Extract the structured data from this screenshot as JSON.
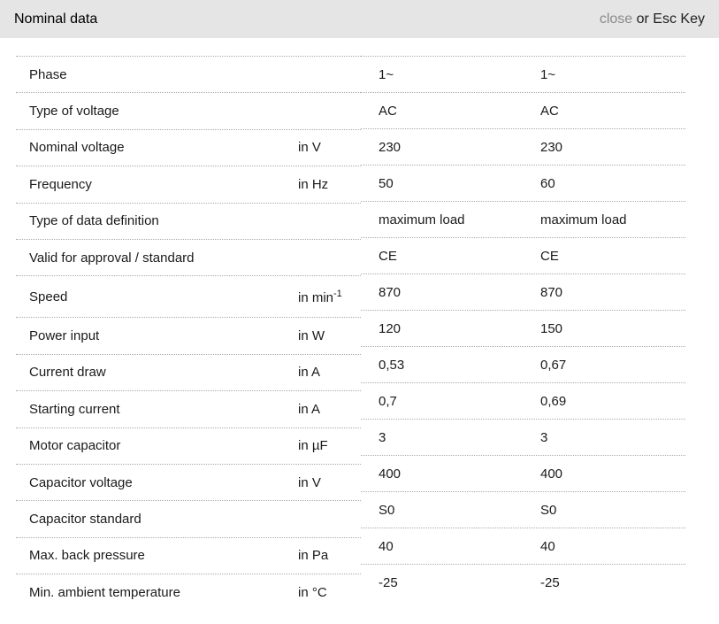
{
  "header": {
    "title": "Nominal data",
    "close_label": "close",
    "close_hint": " or Esc Key"
  },
  "table": {
    "rows": [
      {
        "label": "Phase",
        "unit": "",
        "v1": "1~",
        "v2": "1~"
      },
      {
        "label": "Type of voltage",
        "unit": "",
        "v1": "AC",
        "v2": "AC"
      },
      {
        "label": "Nominal voltage",
        "unit": "in V",
        "v1": "230",
        "v2": "230"
      },
      {
        "label": "Frequency",
        "unit": "in Hz",
        "v1": "50",
        "v2": "60"
      },
      {
        "label": "Type of data definition",
        "unit": "",
        "v1": "maximum load",
        "v2": "maximum load"
      },
      {
        "label": "Valid for approval / standard",
        "unit": "",
        "v1": "CE",
        "v2": "CE"
      },
      {
        "label": "Speed",
        "unit": "in min",
        "unit_sup": "-1",
        "tall": true,
        "v1": "870",
        "v2": "870"
      },
      {
        "label": "Power input",
        "unit": "in W",
        "v1": "120",
        "v2": "150"
      },
      {
        "label": "Current draw",
        "unit": "in A",
        "v1": "0,53",
        "v2": "0,67"
      },
      {
        "label": "Starting current",
        "unit": "in A",
        "v1": "0,7",
        "v2": "0,69"
      },
      {
        "label": "Motor capacitor",
        "unit": "in µF",
        "v1": "3",
        "v2": "3"
      },
      {
        "label": "Capacitor voltage",
        "unit": "in V",
        "v1": "400",
        "v2": "400"
      },
      {
        "label": "Capacitor standard",
        "unit": "",
        "v1": "S0",
        "v2": "S0"
      },
      {
        "label": "Max. back pressure",
        "unit": "in Pa",
        "v1": "40",
        "v2": "40"
      },
      {
        "label": "Min. ambient temperature",
        "unit": "in °C",
        "v1": "-25",
        "v2": "-25"
      }
    ]
  },
  "colors": {
    "header_bg": "#e5e5e5",
    "close_link": "#8a8a8a",
    "text": "#1a1a1a",
    "separator": "#aaaaaa"
  }
}
